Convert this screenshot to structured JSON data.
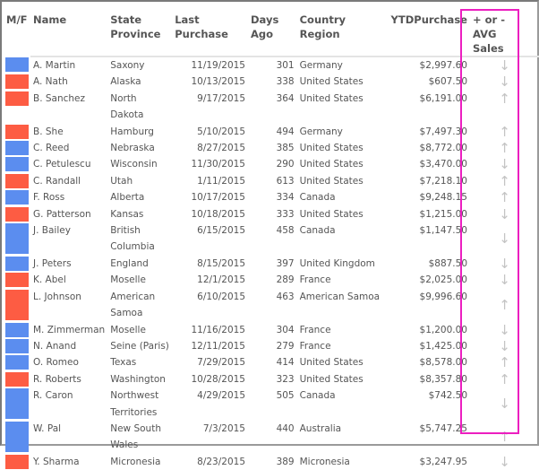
{
  "columns": [
    "M/F",
    "Name",
    "State Province",
    "Last Purchase",
    "Days Ago",
    "Country Region",
    "YTDPurchase",
    "+ or - AVG Sales"
  ],
  "colors": {
    "male": "#5b8def",
    "female": "#fd5c43",
    "highlight": "#ec1fc0",
    "arrow": "#c4c4c4"
  },
  "rows": [
    {
      "g": "M",
      "name": "A. Martin",
      "state": "Saxony",
      "last": "11/19/2015",
      "days": "301",
      "country": "Germany",
      "ytd": "$2,997.60",
      "trend": "down"
    },
    {
      "g": "F",
      "name": "A. Nath",
      "state": "Alaska",
      "last": "10/13/2015",
      "days": "338",
      "country": "United States",
      "ytd": "$607.50",
      "trend": "down"
    },
    {
      "g": "F",
      "name": "B. Sanchez",
      "state": "North Dakota",
      "last": "9/17/2015",
      "days": "364",
      "country": "United States",
      "ytd": "$6,191.00",
      "trend": "up"
    },
    {
      "g": "F",
      "name": "B. She",
      "state": "Hamburg",
      "last": "5/10/2015",
      "days": "494",
      "country": "Germany",
      "ytd": "$7,497.30",
      "trend": "up"
    },
    {
      "g": "M",
      "name": "C. Reed",
      "state": "Nebraska",
      "last": "8/27/2015",
      "days": "385",
      "country": "United States",
      "ytd": "$8,772.00",
      "trend": "up"
    },
    {
      "g": "M",
      "name": "C. Petulescu",
      "state": "Wisconsin",
      "last": "11/30/2015",
      "days": "290",
      "country": "United States",
      "ytd": "$3,470.00",
      "trend": "down"
    },
    {
      "g": "F",
      "name": "C. Randall",
      "state": "Utah",
      "last": "1/11/2015",
      "days": "613",
      "country": "United States",
      "ytd": "$7,218.10",
      "trend": "up"
    },
    {
      "g": "M",
      "name": "F. Ross",
      "state": "Alberta",
      "last": "10/17/2015",
      "days": "334",
      "country": "Canada",
      "ytd": "$9,248.15",
      "trend": "up"
    },
    {
      "g": "F",
      "name": "G. Patterson",
      "state": "Kansas",
      "last": "10/18/2015",
      "days": "333",
      "country": "United States",
      "ytd": "$1,215.00",
      "trend": "down"
    },
    {
      "g": "M",
      "name": "J. Bailey",
      "state": "British Columbia",
      "last": "6/15/2015",
      "days": "458",
      "country": "Canada",
      "ytd": "$1,147.50",
      "trend": "down"
    },
    {
      "g": "M",
      "name": "J. Peters",
      "state": "England",
      "last": "8/15/2015",
      "days": "397",
      "country": "United Kingdom",
      "ytd": "$887.50",
      "trend": "down"
    },
    {
      "g": "F",
      "name": "K. Abel",
      "state": "Moselle",
      "last": "12/1/2015",
      "days": "289",
      "country": "France",
      "ytd": "$2,025.00",
      "trend": "down"
    },
    {
      "g": "F",
      "name": "L. Johnson",
      "state": "American Samoa",
      "last": "6/10/2015",
      "days": "463",
      "country": "American Samoa",
      "ytd": "$9,996.60",
      "trend": "up"
    },
    {
      "g": "M",
      "name": "M. Zimmerman",
      "state": "Moselle",
      "last": "11/16/2015",
      "days": "304",
      "country": "France",
      "ytd": "$1,200.00",
      "trend": "down"
    },
    {
      "g": "M",
      "name": "N. Anand",
      "state": "Seine (Paris)",
      "last": "12/11/2015",
      "days": "279",
      "country": "France",
      "ytd": "$1,425.00",
      "trend": "down"
    },
    {
      "g": "M",
      "name": "O. Romeo",
      "state": "Texas",
      "last": "7/29/2015",
      "days": "414",
      "country": "United States",
      "ytd": "$8,578.00",
      "trend": "up"
    },
    {
      "g": "F",
      "name": "R. Roberts",
      "state": "Washington",
      "last": "10/28/2015",
      "days": "323",
      "country": "United States",
      "ytd": "$8,357.80",
      "trend": "up"
    },
    {
      "g": "M",
      "name": "R. Caron",
      "state": "Northwest Territories",
      "last": "4/29/2015",
      "days": "505",
      "country": "Canada",
      "ytd": "$742.50",
      "trend": "down"
    },
    {
      "g": "M",
      "name": "W. Pal",
      "state": "New South Wales",
      "last": "7/3/2015",
      "days": "440",
      "country": "Australia",
      "ytd": "$5,747.25",
      "trend": "up"
    },
    {
      "g": "F",
      "name": "Y. Sharma",
      "state": "Micronesia",
      "last": "8/23/2015",
      "days": "389",
      "country": "Micronesia",
      "ytd": "$3,247.95",
      "trend": "down"
    }
  ]
}
